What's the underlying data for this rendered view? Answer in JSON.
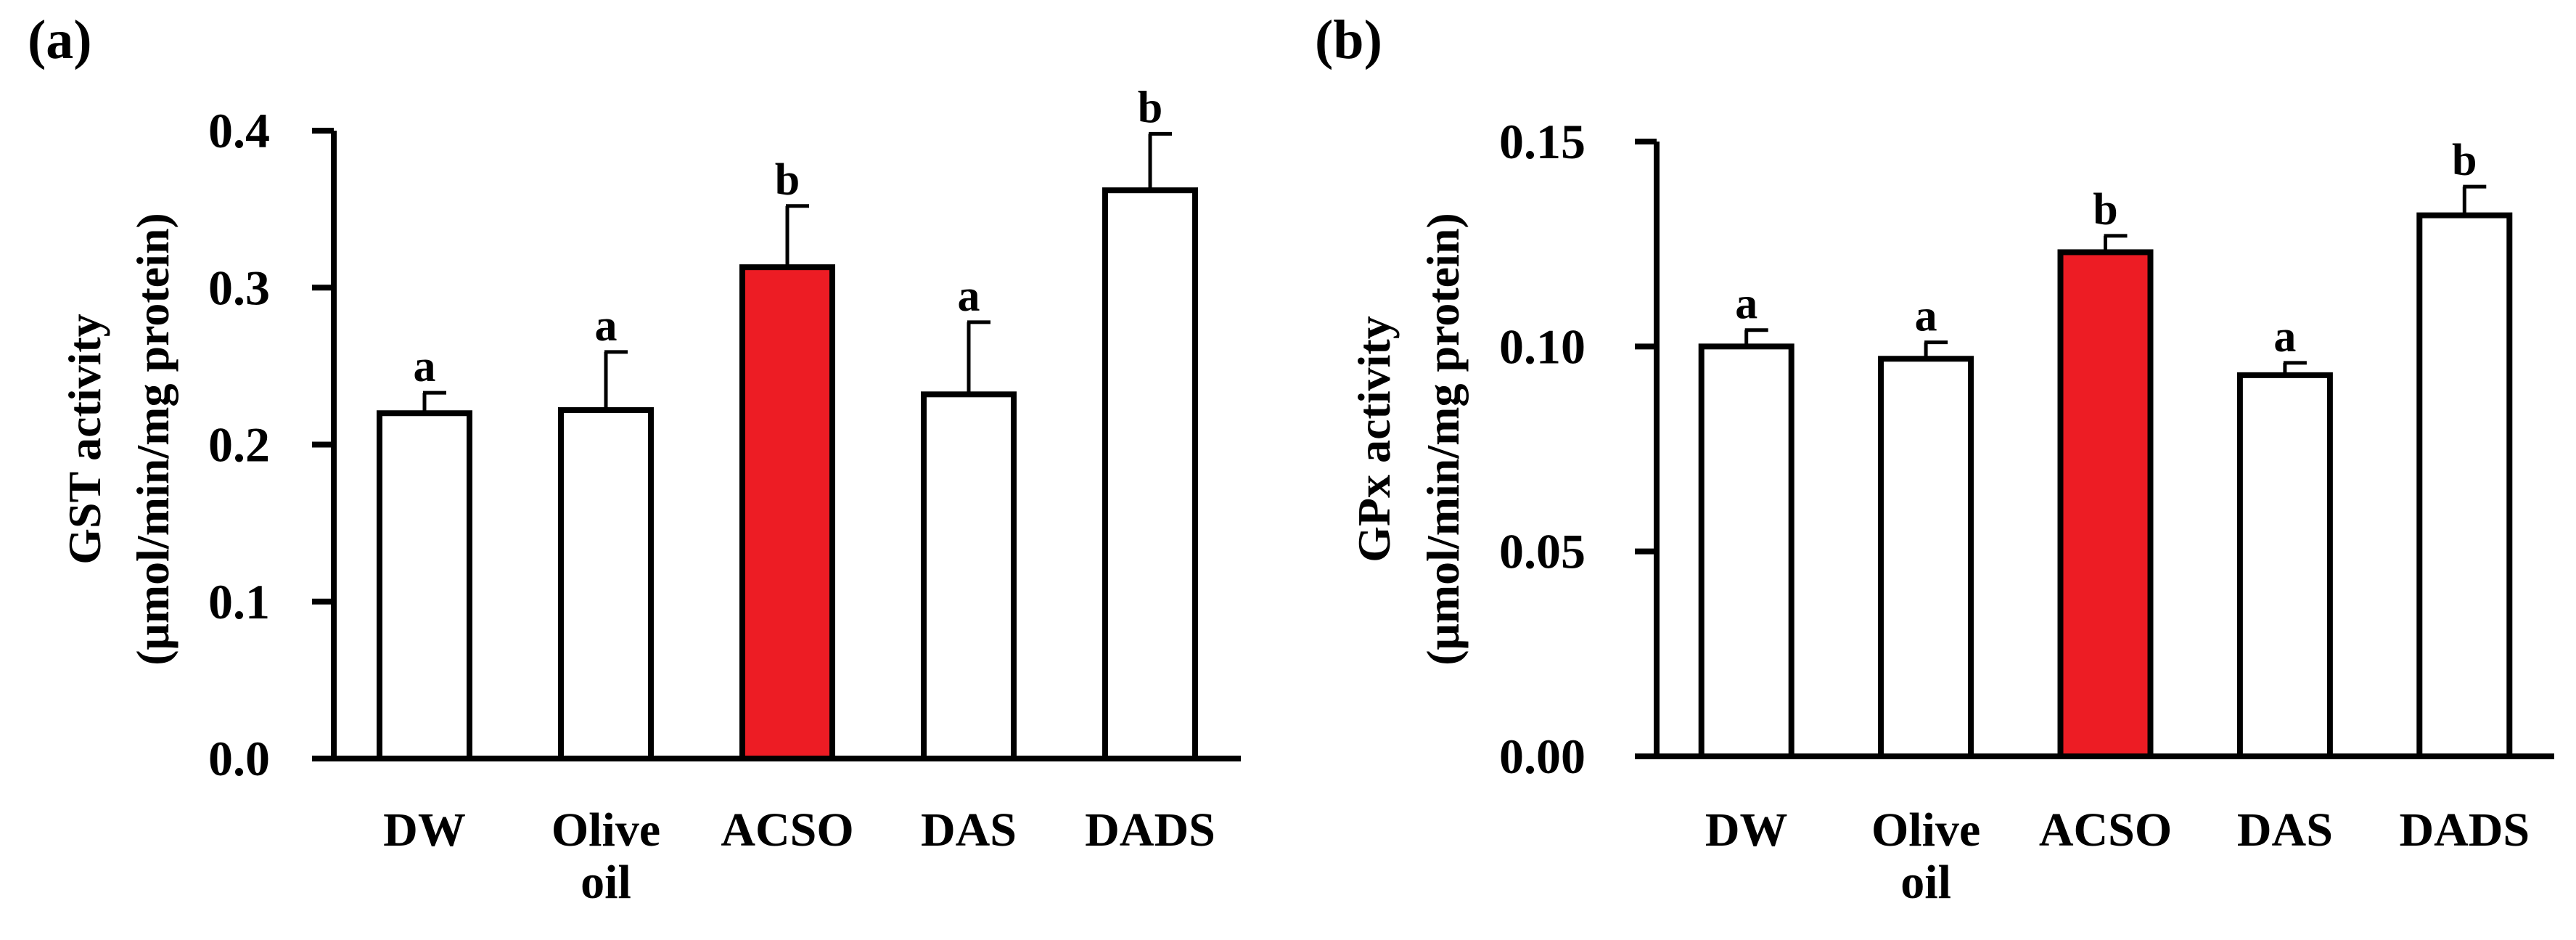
{
  "chart_data": [
    {
      "type": "bar",
      "panel_label": "(a)",
      "ylabel_line1": "GST activity",
      "ylabel_line2": "(μmol/min/mg protein)",
      "categories": [
        [
          "DW"
        ],
        [
          "Olive",
          "oil"
        ],
        [
          "ACSO"
        ],
        [
          "DAS"
        ],
        [
          "DADS"
        ]
      ],
      "values": [
        0.22,
        0.222,
        0.313,
        0.232,
        0.362
      ],
      "errors": [
        0.013,
        0.037,
        0.039,
        0.046,
        0.036
      ],
      "significance": [
        "a",
        "a",
        "b",
        "a",
        "b"
      ],
      "colors": [
        "#ffffff",
        "#ffffff",
        "#ed1c24",
        "#ffffff",
        "#ffffff"
      ],
      "ylim": [
        0,
        0.4
      ],
      "yticks": [
        "0.0",
        "0.1",
        "0.2",
        "0.3",
        "0.4"
      ]
    },
    {
      "type": "bar",
      "panel_label": "(b)",
      "ylabel_line1": "GPx activity",
      "ylabel_line2": "(μmol/min/mg protein)",
      "categories": [
        [
          "DW"
        ],
        [
          "Olive",
          "oil"
        ],
        [
          "ACSO"
        ],
        [
          "DAS"
        ],
        [
          "DADS"
        ]
      ],
      "values": [
        0.1,
        0.097,
        0.123,
        0.093,
        0.132
      ],
      "errors": [
        0.004,
        0.004,
        0.004,
        0.003,
        0.007
      ],
      "significance": [
        "a",
        "a",
        "b",
        "a",
        "b"
      ],
      "colors": [
        "#ffffff",
        "#ffffff",
        "#ed1c24",
        "#ffffff",
        "#ffffff"
      ],
      "ylim": [
        0,
        0.15
      ],
      "yticks": [
        "0.00",
        "0.05",
        "0.10",
        "0.15"
      ]
    }
  ]
}
